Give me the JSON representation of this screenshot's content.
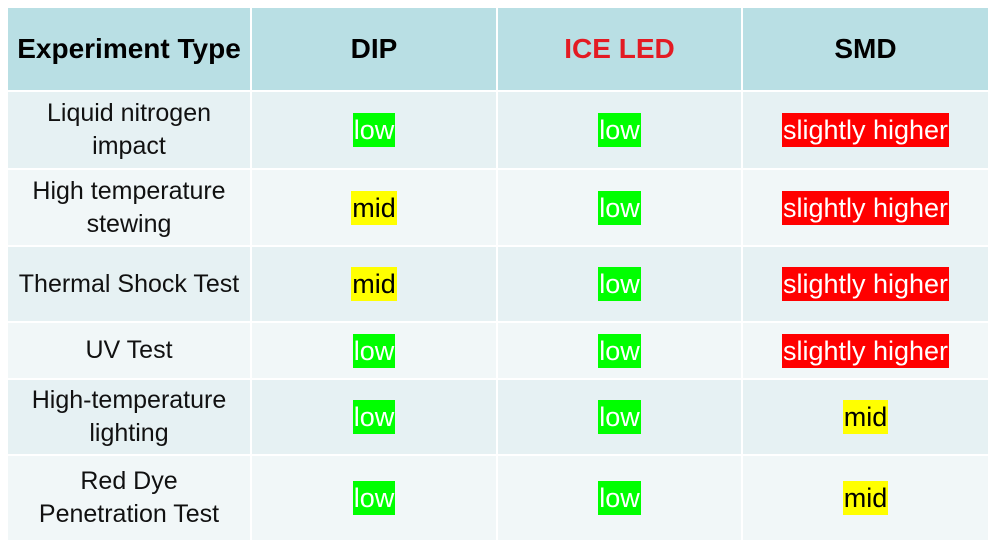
{
  "table": {
    "header": [
      {
        "text": "Experiment Type",
        "color": "#000000"
      },
      {
        "text": "DIP",
        "color": "#000000"
      },
      {
        "text": "ICE LED",
        "color": "#e31b23"
      },
      {
        "text": "SMD",
        "color": "#000000"
      }
    ],
    "rows": [
      [
        "Liquid nitrogen impact",
        "low",
        "low",
        "slightly higher"
      ],
      [
        "High temperature stewing",
        "mid",
        "low",
        "slightly higher"
      ],
      [
        "Thermal Shock Test",
        "mid",
        "low",
        "slightly higher"
      ],
      [
        "UV Test",
        "low",
        "low",
        "slightly higher"
      ],
      [
        "High-temperature lighting",
        "low",
        "low",
        "mid"
      ],
      [
        "Red Dye Penetration Test",
        "low",
        "low",
        "mid"
      ]
    ],
    "highlight_colors": {
      "low": {
        "background": "#00ff00",
        "text": "#ffffff"
      },
      "mid": {
        "background": "#ffff00",
        "text": "#000000"
      },
      "slightly higher": {
        "background": "#ff0000",
        "text": "#ffffff"
      }
    }
  }
}
